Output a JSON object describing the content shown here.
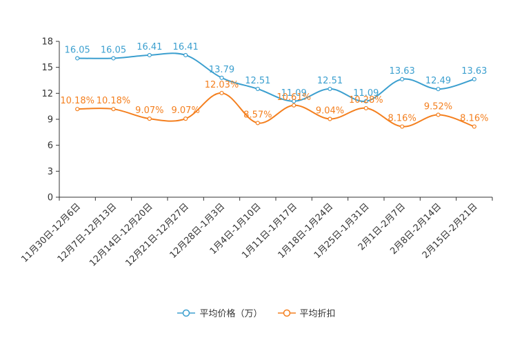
{
  "chart_data": {
    "type": "line",
    "categories": [
      "11月30日-12月6日",
      "12月7日-12月13日",
      "12月14日-12月20日",
      "12月21日-12月27日",
      "12月28日-1月3日",
      "1月4日-1月10日",
      "1月11日-1月17日",
      "1月18日-1月24日",
      "1月25日-1月31日",
      "2月1日-2月7日",
      "2月8日-2月14日",
      "2月15日-2月21日"
    ],
    "ylim": [
      0,
      18
    ],
    "yticks": [
      0,
      3,
      6,
      9,
      12,
      15,
      18
    ],
    "series": [
      {
        "name": "平均价格（万）",
        "color": "#3b9fcf",
        "values": [
          16.05,
          16.05,
          16.41,
          16.41,
          13.79,
          12.51,
          11.09,
          12.51,
          11.09,
          13.63,
          12.49,
          13.63
        ],
        "labels": [
          "16.05",
          "16.05",
          "16.41",
          "16.41",
          "13.79",
          "12.51",
          "11.09",
          "12.51",
          "11.09",
          "13.63",
          "12.49",
          "13.63"
        ]
      },
      {
        "name": "平均折扣",
        "color": "#f47f1e",
        "values": [
          10.18,
          10.18,
          9.07,
          9.07,
          12.03,
          8.57,
          10.61,
          9.04,
          10.28,
          8.16,
          9.52,
          8.16
        ],
        "labels": [
          "10.18%",
          "10.18%",
          "9.07%",
          "9.07%",
          "12.03%",
          "8.57%",
          "10.61%",
          "9.04%",
          "10.28%",
          "8.16%",
          "9.52%",
          "8.16%"
        ]
      }
    ]
  }
}
